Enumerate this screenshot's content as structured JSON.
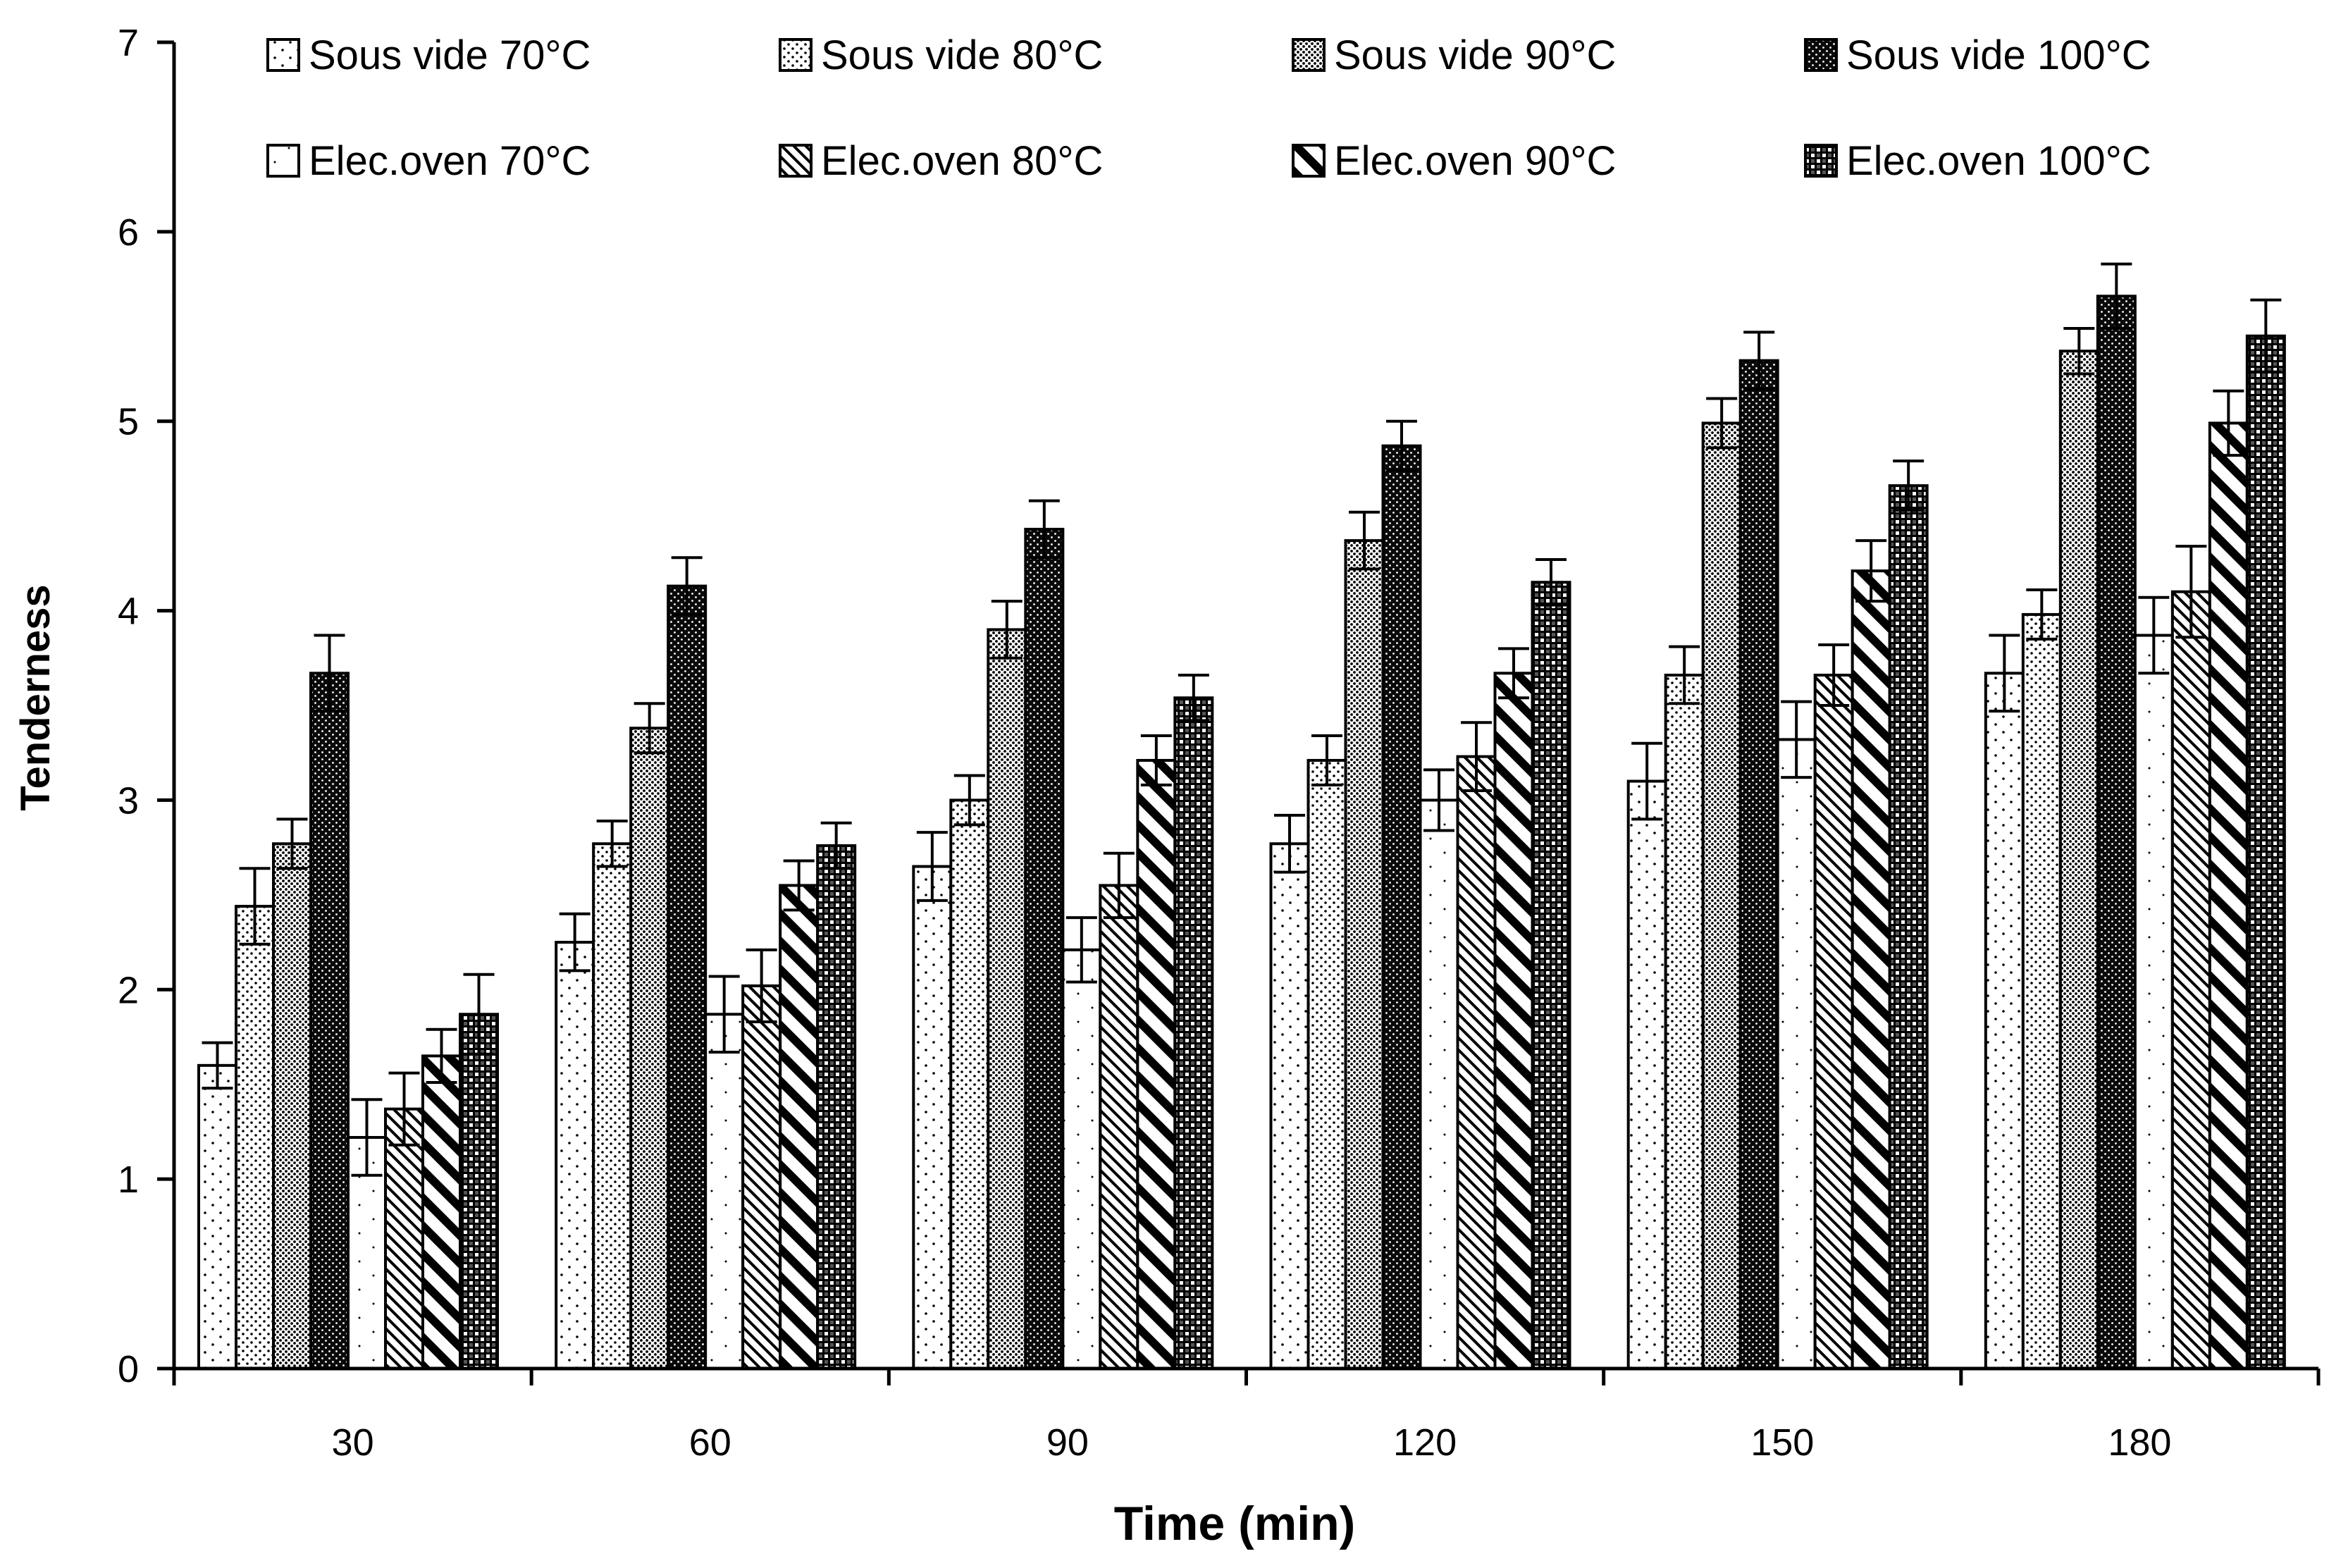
{
  "chart_data": {
    "type": "bar",
    "title": "",
    "xlabel": "Time (min)",
    "ylabel": "Tenderness",
    "ylim": [
      0,
      7
    ],
    "yticks": [
      "0",
      "1",
      "2",
      "3",
      "4",
      "5",
      "6",
      "7"
    ],
    "categories": [
      "30",
      "60",
      "90",
      "120",
      "150",
      "180"
    ],
    "grid": false,
    "legend_position": "top",
    "series": [
      {
        "name": "Sous vide 70°C",
        "pattern": "dots-sparse",
        "values": [
          1.6,
          2.25,
          2.65,
          2.77,
          3.1,
          3.67
        ],
        "errors": [
          0.12,
          0.15,
          0.18,
          0.15,
          0.2,
          0.2
        ]
      },
      {
        "name": "Sous vide 80°C",
        "pattern": "dots-medium",
        "values": [
          2.44,
          2.77,
          3.0,
          3.21,
          3.66,
          3.98
        ],
        "errors": [
          0.2,
          0.12,
          0.13,
          0.13,
          0.15,
          0.13
        ]
      },
      {
        "name": "Sous vide 90°C",
        "pattern": "dots-dense",
        "values": [
          2.77,
          3.38,
          3.9,
          4.37,
          4.99,
          5.37
        ],
        "errors": [
          0.13,
          0.13,
          0.15,
          0.15,
          0.13,
          0.12
        ]
      },
      {
        "name": "Sous vide 100°C",
        "pattern": "dark-dots",
        "values": [
          3.67,
          4.13,
          4.43,
          4.87,
          5.32,
          5.66
        ],
        "errors": [
          0.2,
          0.15,
          0.15,
          0.13,
          0.15,
          0.17
        ]
      },
      {
        "name": "Elec.oven 70°C",
        "pattern": "white-sparse",
        "values": [
          1.22,
          1.87,
          2.21,
          3.0,
          3.32,
          3.87
        ],
        "errors": [
          0.2,
          0.2,
          0.17,
          0.16,
          0.2,
          0.2
        ]
      },
      {
        "name": "Elec.oven 80°C",
        "pattern": "thin-diag",
        "values": [
          1.37,
          2.02,
          2.55,
          3.23,
          3.66,
          4.1
        ],
        "errors": [
          0.19,
          0.19,
          0.17,
          0.18,
          0.16,
          0.24
        ]
      },
      {
        "name": "Elec.oven 90°C",
        "pattern": "thick-diag",
        "values": [
          1.65,
          2.55,
          3.21,
          3.67,
          4.21,
          4.99
        ],
        "errors": [
          0.14,
          0.13,
          0.13,
          0.13,
          0.16,
          0.17
        ]
      },
      {
        "name": "Elec.oven 100°C",
        "pattern": "checker",
        "values": [
          1.87,
          2.76,
          3.54,
          4.15,
          4.66,
          5.45
        ],
        "errors": [
          0.21,
          0.12,
          0.12,
          0.12,
          0.13,
          0.19
        ]
      }
    ]
  }
}
